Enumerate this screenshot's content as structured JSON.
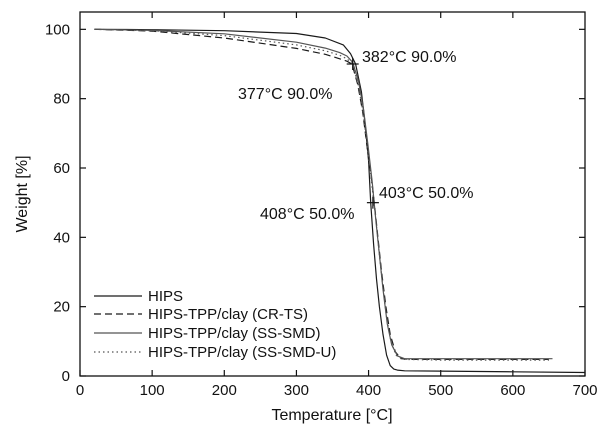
{
  "chart_data": {
    "type": "line",
    "title": "",
    "xlabel": "Temperature [°C]",
    "ylabel": "Weight [%]",
    "xlim": [
      0,
      700
    ],
    "ylim": [
      0,
      105
    ],
    "xticks": [
      "0",
      "100",
      "200",
      "300",
      "400",
      "500",
      "600",
      "700"
    ],
    "yticks": [
      "0",
      "20",
      "40",
      "60",
      "80",
      "100"
    ],
    "grid": false,
    "legend_position": "bottom-left",
    "series": [
      {
        "name": "HIPS",
        "dash": "solid",
        "color": "#1a1a1a",
        "x": [
          20,
          100,
          200,
          300,
          340,
          365,
          375,
          382,
          390,
          395,
          400,
          403,
          407,
          411,
          415,
          420,
          425,
          430,
          435,
          440,
          450,
          500,
          600,
          700
        ],
        "y": [
          100,
          99.9,
          99.6,
          98.8,
          97.5,
          95.5,
          93,
          90,
          82,
          73,
          62,
          50,
          38,
          28,
          20,
          12,
          6,
          3,
          2,
          1.7,
          1.5,
          1.4,
          1.2,
          1.0
        ]
      },
      {
        "name": "HIPS-TPP/clay (CR-TS)",
        "dash": "dashed",
        "color": "#1a1a1a",
        "x": [
          20,
          100,
          200,
          300,
          340,
          360,
          370,
          377,
          385,
          392,
          398,
          404,
          408,
          413,
          418,
          424,
          430,
          437,
          445,
          460,
          500,
          600,
          650
        ],
        "y": [
          100,
          99.5,
          97.5,
          94.5,
          92.8,
          91.5,
          90.8,
          90,
          84,
          76,
          66,
          57,
          50,
          40,
          30,
          20,
          12,
          7,
          5,
          4.8,
          4.8,
          4.8,
          4.8
        ]
      },
      {
        "name": "HIPS-TPP/clay (SS-SMD)",
        "dash": "solid",
        "color": "#555555",
        "x": [
          20,
          100,
          200,
          300,
          340,
          360,
          370,
          378,
          386,
          393,
          399,
          405,
          410,
          415,
          420,
          426,
          432,
          440,
          450,
          500,
          600,
          655
        ],
        "y": [
          100,
          99.7,
          98.7,
          96.3,
          94.6,
          93.3,
          92.3,
          90.5,
          85,
          77,
          67,
          56,
          45,
          35,
          25,
          15,
          9,
          5.8,
          5,
          5,
          5,
          5
        ]
      },
      {
        "name": "HIPS-TPP/clay (SS-SMD-U)",
        "dash": "dotted",
        "color": "#555555",
        "x": [
          20,
          100,
          200,
          300,
          340,
          360,
          370,
          377,
          385,
          392,
          398,
          404,
          409,
          414,
          419,
          425,
          431,
          438,
          448,
          500,
          600,
          650
        ],
        "y": [
          100,
          99.6,
          98.2,
          95.5,
          93.8,
          92.5,
          91.5,
          90.2,
          84.5,
          76.5,
          66.5,
          56,
          47,
          37,
          27,
          17,
          10,
          6,
          4.8,
          4.6,
          4.6,
          4.6
        ]
      }
    ],
    "annotations": [
      {
        "text": "382°C 90.0%",
        "x": 382,
        "y": 90
      },
      {
        "text": "377°C 90.0%",
        "x": 377,
        "y": 90
      },
      {
        "text": "403°C 50.0%",
        "x": 403,
        "y": 50
      },
      {
        "text": "408°C 50.0%",
        "x": 408,
        "y": 50
      }
    ],
    "markers": [
      {
        "x": 378,
        "y": 90
      },
      {
        "x": 406,
        "y": 50
      }
    ]
  }
}
